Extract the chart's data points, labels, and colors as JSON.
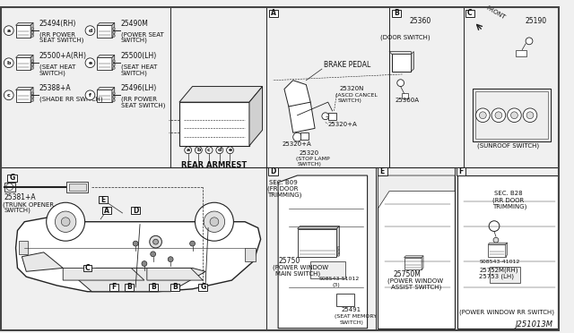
{
  "bg_color": "#f0f0f0",
  "line_color": "#222222",
  "text_color": "#111111",
  "top_parts_left": [
    {
      "label": "a",
      "part": "25494(RH)",
      "desc": "(RR POWER\n SEAT SWITCH)"
    },
    {
      "label": "b",
      "part": "25500+A(RH)",
      "desc": "(SEAT HEAT\n SWITCH)"
    },
    {
      "label": "c",
      "part": "25388+A",
      "desc": "(SHADE RR SWITCH)"
    }
  ],
  "top_parts_right": [
    {
      "label": "d",
      "part": "25490M",
      "desc": "(POWER SEAT\n SWITCH)"
    },
    {
      "label": "e",
      "part": "25500(LH)",
      "desc": "(SEAT HEAT\n SWITCH)"
    },
    {
      "label": "f",
      "part": "25496(LH)",
      "desc": "(RR POWER\n SEAT SWITCH)"
    }
  ],
  "section_g": {
    "part": "25381+A",
    "desc": "(TRUNK OPENER\n SWITCH)"
  },
  "section_a_parts": [
    "BRAKE PEDAL",
    "25320N",
    "(ASCD CANCEL\n SWITCH)",
    "25320+A",
    "25320+A",
    "25320",
    "(STOP LAMP\n SWITCH)"
  ],
  "section_b_parts": [
    "25360",
    "25360A",
    "(DOOR SWITCH)"
  ],
  "section_c_parts": [
    "25190",
    "(SUNROOF SWITCH)"
  ],
  "rear_armrest": "REAR ARMREST",
  "section_d": {
    "ref": "SEC. B09\n(FR DOOR\nTRIMMING)",
    "parts": [
      "25750",
      "(POWER WINDOW\nMAIN SWITCH)",
      "S08543-51012\n(3)",
      "25491",
      "(SEAT MEMORY\nSWITCH)"
    ]
  },
  "section_e": {
    "parts": [
      "25750M",
      "(POWER WINDOW\nASSIST SWITCH)"
    ]
  },
  "section_f": {
    "ref": "SEC. B28\n(RR DOOR\nTRIMMING)",
    "parts": [
      "S08543-41012",
      "25752M(RH)\n25753 (LH)",
      "(POWER WINDOW RR SWITCH)"
    ]
  },
  "diagram_id": "J251013M",
  "car_labels": [
    [
      "A",
      110,
      148
    ],
    [
      "B",
      172,
      220
    ],
    [
      "B",
      232,
      218
    ],
    [
      "B",
      198,
      196
    ],
    [
      "C",
      130,
      210
    ],
    [
      "D",
      178,
      244
    ],
    [
      "E",
      58,
      210
    ],
    [
      "F",
      210,
      218
    ],
    [
      "G",
      238,
      208
    ]
  ]
}
